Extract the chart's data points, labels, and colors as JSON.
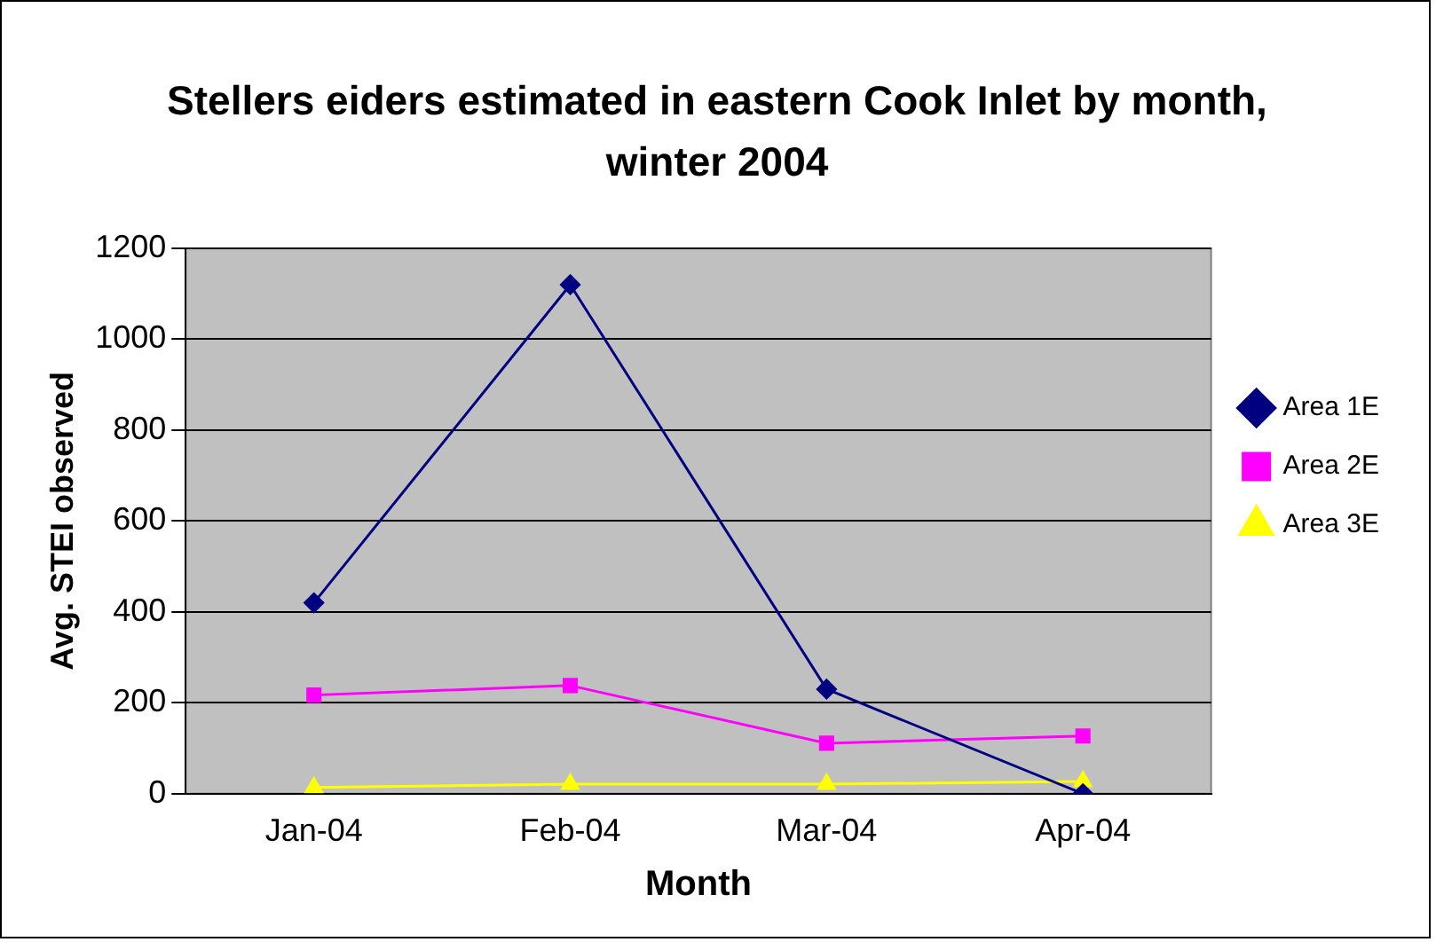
{
  "chart_data": {
    "type": "line",
    "title": "Stellers eiders estimated in eastern Cook Inlet by month, winter 2004",
    "xlabel": "Month",
    "ylabel": "Avg. STEI observed",
    "categories": [
      "Jan-04",
      "Feb-04",
      "Mar-04",
      "Apr-04"
    ],
    "series": [
      {
        "name": "Area 1E",
        "color": "#000080",
        "marker": "diamond",
        "values": [
          420,
          1120,
          230,
          0
        ]
      },
      {
        "name": "Area 2E",
        "color": "#ff00ff",
        "marker": "square",
        "values": [
          217,
          238,
          111,
          127
        ]
      },
      {
        "name": "Area 3E",
        "color": "#ffff00",
        "marker": "triangle",
        "values": [
          14,
          21,
          21,
          27
        ]
      }
    ],
    "ylim": [
      0,
      1200
    ],
    "yticks": [
      0,
      200,
      400,
      600,
      800,
      1000,
      1200
    ],
    "grid": "y",
    "legend": "right"
  }
}
